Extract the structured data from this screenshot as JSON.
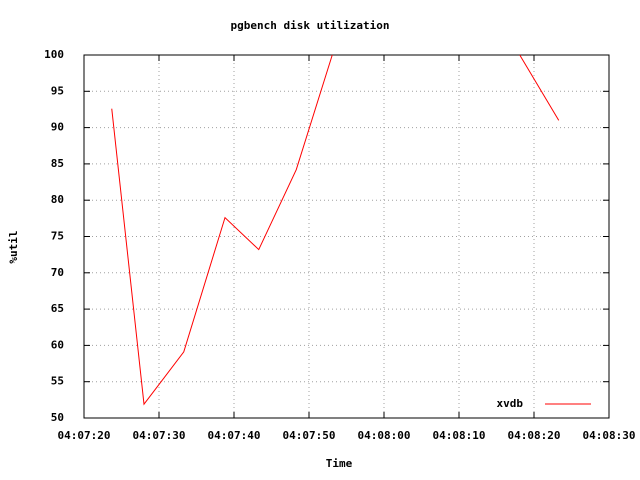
{
  "chart_data": {
    "type": "line",
    "title": "pgbench disk utilization",
    "x_label": "Time",
    "y_label": "%util",
    "x": [
      14843.7,
      14848,
      14853.3,
      14858.8,
      14863.3,
      14868.3,
      14873.1,
      null,
      14898.1,
      14903.3
    ],
    "series": [
      {
        "name": "xvdb",
        "color": "#ff0000",
        "values": [
          92.6,
          51.9,
          59.1,
          77.6,
          73.2,
          84.2,
          100,
          null,
          100,
          91.0
        ]
      }
    ],
    "xlim": [
      14840,
      14910
    ],
    "xticks": [
      {
        "value": 14840,
        "label": "04:07:20"
      },
      {
        "value": 14850,
        "label": "04:07:30"
      },
      {
        "value": 14860,
        "label": "04:07:40"
      },
      {
        "value": 14870,
        "label": "04:07:50"
      },
      {
        "value": 14880,
        "label": "04:08:00"
      },
      {
        "value": 14890,
        "label": "04:08:10"
      },
      {
        "value": 14900,
        "label": "04:08:20"
      },
      {
        "value": 14910,
        "label": "04:08:30"
      }
    ],
    "ylim": [
      50,
      100
    ],
    "yticks": [
      50,
      55,
      60,
      65,
      70,
      75,
      80,
      85,
      90,
      95,
      100
    ],
    "grid": true,
    "legend": "bottom-right"
  }
}
